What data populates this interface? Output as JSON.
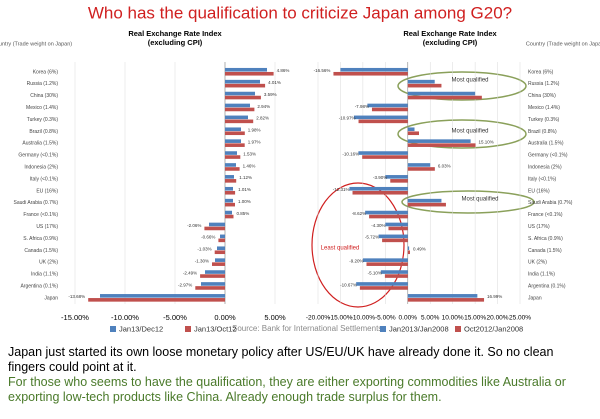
{
  "header": {
    "title": "Who has the qualification to criticize Japan among G20?"
  },
  "chart_data": [
    {
      "type": "barh",
      "title": "Real Exchange Rate Index",
      "subtitle": "(excluding CPI)",
      "ylabel": "Country (Trade weight on Japan)",
      "categories": [
        "Korea (6%)",
        "Russia (1.2%)",
        "China (30%)",
        "Mexico (1.4%)",
        "Turkey (0.3%)",
        "Brazil (0.8%)",
        "Australia (1.5%)",
        "Germany (<0.1%)",
        "Indonesia (2%)",
        "Italy (<0.1%)",
        "EU (16%)",
        "Saudi Arabia (0.7%)",
        "France (<0.1%)",
        "US (17%)",
        "S. Africa (0.9%)",
        "Canada (1.5%)",
        "UK (2%)",
        "India (1.1%)",
        "Argentina (0.1%)",
        "Japan"
      ],
      "series": [
        {
          "name": "Jan13/Dec12",
          "color": "#4f81bd",
          "values": [
            4.2,
            3.5,
            3.0,
            2.5,
            2.3,
            1.6,
            1.6,
            1.2,
            1.1,
            0.9,
            0.8,
            0.8,
            0.7,
            -1.6,
            -0.5,
            -0.8,
            -1.0,
            -2.0,
            -2.4,
            -12.5
          ]
        },
        {
          "name": "Jan13/Oct12",
          "color": "#c0504d",
          "values": [
            4.86,
            4.01,
            3.59,
            2.94,
            2.82,
            1.98,
            1.97,
            1.53,
            1.46,
            1.12,
            1.01,
            1.0,
            0.85,
            -2.06,
            -0.66,
            -1.03,
            -1.3,
            -2.49,
            -2.97,
            -13.68
          ],
          "value_labels": [
            "4.86%",
            "4.01%",
            "3.59%",
            "2.94%",
            "2.82%",
            "1.98%",
            "1.97%",
            "1.53%",
            "1.46%",
            "1.12%",
            "1.01%",
            "1.00%",
            "0.85%",
            "-2.06%",
            "-0.66%",
            "-1.03%",
            "-1.30%",
            "-2.49%",
            "-2.97%",
            "-13.68%"
          ]
        }
      ],
      "xlim": [
        -15,
        5
      ],
      "xticks": [
        {
          "value": -15,
          "label": "-15.00%"
        },
        {
          "value": -10,
          "label": "-10.00%"
        },
        {
          "value": -5,
          "label": "-5.00%"
        },
        {
          "value": 0,
          "label": "0.00%"
        },
        {
          "value": 5,
          "label": "5.00%"
        }
      ],
      "grid": true,
      "legend": "bottom"
    },
    {
      "type": "barh",
      "title": "Real Exchange Rate Index",
      "subtitle": "(excluding CPI)",
      "ylabel": "Country (Trade weight on Japan)",
      "categories": [
        "Korea (6%)",
        "Russia (1.2%)",
        "China (30%)",
        "Mexico (1.4%)",
        "Turkey (0.3%)",
        "Brazil (0.8%)",
        "Australia (1.5%)",
        "Germany (<0.1%)",
        "Indonesia (2%)",
        "Italy (<0.1%)",
        "EU (16%)",
        "Saudi Arabia (0.7%)",
        "France (<0.1%)",
        "US (17%)",
        "S. Africa (0.9%)",
        "Canada (1.5%)",
        "UK (2%)",
        "India (1.1%)",
        "Argentina (0.1%)",
        "Japan"
      ],
      "series": [
        {
          "name": "Jan2013/Jan2008",
          "color": "#4f81bd",
          "values": [
            -15,
            6,
            15,
            -9,
            -12,
            1.5,
            14,
            -11,
            5,
            -5,
            -13,
            7.5,
            -9.5,
            -5,
            -6.5,
            0.3,
            -10,
            -6,
            -11.5,
            15.5
          ]
        },
        {
          "name": "Oct2012/Jan2008",
          "color": "#c0504d",
          "values": [
            -16.56,
            7.5,
            16.5,
            -7.98,
            -10.97,
            2.5,
            15.1,
            -10.16,
            6.03,
            -3.9,
            -12.31,
            8.5,
            -8.62,
            -4.3,
            -5.72,
            0.49,
            -9.2,
            -5.1,
            -10.67,
            16.99
          ],
          "value_labels": [
            "-16.56%",
            null,
            null,
            "-7.98%",
            "-10.97%",
            null,
            "15.10%",
            "-10.16%",
            "6.03%",
            "-3.90%",
            "-12.31%",
            null,
            "-8.62%",
            "-4.30%",
            "-5.72%",
            "0.49%",
            "-9.20%",
            "-5.10%",
            "-10.67%",
            "16.99%"
          ]
        }
      ],
      "xlim": [
        -20,
        25
      ],
      "xticks": [
        {
          "value": -20,
          "label": "-20.00%"
        },
        {
          "value": -15,
          "label": "-15.00%"
        },
        {
          "value": -10,
          "label": "-10.00%"
        },
        {
          "value": -5,
          "label": "-5.00%"
        },
        {
          "value": 0,
          "label": "0.00%"
        },
        {
          "value": 5,
          "label": "5.00%"
        },
        {
          "value": 10,
          "label": "10.00%"
        },
        {
          "value": 15,
          "label": "15.00%"
        },
        {
          "value": 20,
          "label": "20.00%"
        },
        {
          "value": 25,
          "label": "25.00%"
        }
      ],
      "grid": true,
      "legend": "bottom",
      "annotations": [
        "Most qualified",
        "Most qualified",
        "Most qualified",
        "Least qualified"
      ]
    }
  ],
  "source": "Source: Bank for International Settlements",
  "notes": [
    "Japan just started its own loose monetary policy after US/EU/UK have already done it. So no clean fingers could point at it.",
    "For those who seems to have the qualification, they are either exporting commodities like Australia or exporting low-tech products like China. Already enough trade surplus for them."
  ]
}
